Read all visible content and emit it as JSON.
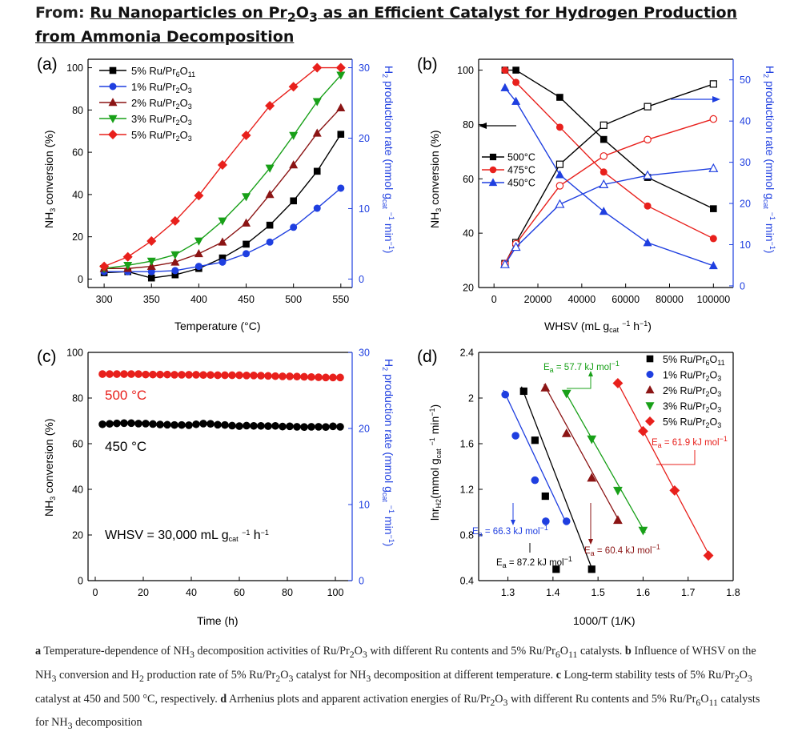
{
  "header": {
    "prefix": "From:",
    "title": "Ru Nanoparticles on Pr2O3 as an Efficient Catalyst for Hydrogen Production from Ammonia Decomposition"
  },
  "caption": {
    "a_key": "a",
    "a_text": "Temperature-dependence of NH3 decomposition activities of Ru/Pr2O3 with different Ru contents and 5% Ru/Pr6O11 catalysts.",
    "b_key": "b",
    "b_text": "Influence of WHSV on the NH3 conversion and H2 production rate of 5% Ru/Pr2O3 catalyst for NH3 decomposition at different temperature.",
    "c_key": "c",
    "c_text": "Long-term stability tests of 5% Ru/Pr2O3 catalyst at 450 and 500 °C, respectively.",
    "d_key": "d",
    "d_text": "Arrhenius plots and apparent activation energies of Ru/Pr2O3 with different Ru contents and 5% Ru/Pr6O11 catalysts for NH3 decomposition"
  },
  "colors": {
    "black": "#000000",
    "blue": "#1f3fe0",
    "red": "#e8201c",
    "darkred": "#8b1414",
    "green": "#18a018",
    "axis_right": "#1f3fe0"
  },
  "chart_data": [
    {
      "panel": "(a)",
      "type": "line",
      "xlabel": "Temperature (°C)",
      "ylabel": "NH3 conversion (%)",
      "y2label": "H2 production rate (mmol gcat-1 min-1)",
      "xlim": [
        283,
        562
      ],
      "ylim": [
        -4,
        104
      ],
      "y2lim": [
        -1.2,
        31.2
      ],
      "xticks": [
        300,
        350,
        400,
        450,
        500,
        550
      ],
      "yticks": [
        0,
        20,
        40,
        60,
        80,
        100
      ],
      "y2ticks": [
        0,
        10,
        20,
        30
      ],
      "legend": "top-left",
      "series": [
        {
          "name": "5% Ru/Pr6O11",
          "color": "#000000",
          "marker": "square",
          "x": [
            300,
            325,
            350,
            375,
            400,
            425,
            450,
            475,
            500,
            525,
            550
          ],
          "y": [
            3,
            3.5,
            0.5,
            2,
            5,
            10,
            16.5,
            25.5,
            37,
            51,
            68.5
          ]
        },
        {
          "name": "1% Ru/Pr2O3",
          "color": "#1f3fe0",
          "marker": "circle",
          "x": [
            300,
            325,
            350,
            375,
            400,
            425,
            450,
            475,
            500,
            525,
            550
          ],
          "y": [
            3.5,
            3.5,
            3.5,
            4,
            6,
            8,
            12,
            17.5,
            24.5,
            33.5,
            43
          ]
        },
        {
          "name": "2% Ru/Pr2O3",
          "color": "#8b1414",
          "marker": "triangle-up",
          "x": [
            300,
            325,
            350,
            375,
            400,
            425,
            450,
            475,
            500,
            525,
            550
          ],
          "y": [
            5,
            5,
            6,
            8,
            12,
            17.5,
            26.5,
            40,
            54,
            69,
            81
          ]
        },
        {
          "name": "3% Ru/Pr2O3",
          "color": "#18a018",
          "marker": "triangle-down",
          "x": [
            300,
            325,
            350,
            375,
            400,
            425,
            450,
            475,
            500,
            525,
            550
          ],
          "y": [
            5,
            6.5,
            8.5,
            11.5,
            18,
            27.5,
            39,
            52.5,
            68,
            84,
            96.5
          ]
        },
        {
          "name": "5% Ru/Pr2O3",
          "color": "#e8201c",
          "marker": "diamond",
          "x": [
            300,
            325,
            350,
            375,
            400,
            425,
            450,
            475,
            500,
            525,
            550
          ],
          "y": [
            6,
            10.5,
            18,
            27.5,
            39.5,
            54,
            68,
            82,
            91,
            100,
            100
          ]
        }
      ]
    },
    {
      "panel": "(b)",
      "type": "line",
      "xlabel": "WHSV (mL gcat-1 h-1)",
      "ylabel": "NH3 conversion (%)",
      "y2label": "H2 production rate (mmol gcat-1 min-1)",
      "xlim": [
        -7000,
        109000
      ],
      "ylim": [
        20,
        104
      ],
      "y2lim": [
        -0.4,
        55
      ],
      "xticks": [
        0,
        20000,
        40000,
        60000,
        80000,
        100000
      ],
      "yticks": [
        20,
        40,
        60,
        80,
        100
      ],
      "y2ticks": [
        0,
        10,
        20,
        30,
        40,
        50
      ],
      "legend": "center-left",
      "series": [
        {
          "name": "500°C",
          "color": "#000000",
          "marker": "square",
          "axis": "left",
          "x": [
            5000,
            10000,
            30000,
            50000,
            70000,
            100000
          ],
          "y": [
            100,
            100,
            90,
            74.5,
            60.5,
            49
          ]
        },
        {
          "name": "475°C",
          "color": "#e8201c",
          "marker": "circle",
          "axis": "left",
          "x": [
            5000,
            10000,
            30000,
            50000,
            70000,
            100000
          ],
          "y": [
            100,
            95.5,
            79,
            62.5,
            50,
            38
          ]
        },
        {
          "name": "450°C",
          "color": "#1f3fe0",
          "marker": "triangle-up",
          "axis": "left",
          "x": [
            5000,
            10000,
            30000,
            50000,
            70000,
            100000
          ],
          "y": [
            93.5,
            88.5,
            61.5,
            48,
            36.5,
            28
          ]
        },
        {
          "name": "",
          "color": "#000000",
          "marker": "square-open",
          "axis": "right",
          "x": [
            5000,
            10000,
            30000,
            50000,
            70000,
            100000
          ],
          "y": [
            5.4,
            10.5,
            29.5,
            39,
            43.5,
            49
          ]
        },
        {
          "name": "",
          "color": "#e8201c",
          "marker": "circle-open",
          "axis": "right",
          "x": [
            5000,
            10000,
            30000,
            50000,
            70000,
            100000
          ],
          "y": [
            5.4,
            10.2,
            24.3,
            31.5,
            35.5,
            40.5
          ]
        },
        {
          "name": "",
          "color": "#1f3fe0",
          "marker": "triangle-open",
          "axis": "right",
          "x": [
            5000,
            10000,
            30000,
            50000,
            70000,
            100000
          ],
          "y": [
            5.2,
            9.4,
            19.8,
            24.6,
            26.8,
            28.5
          ]
        }
      ]
    },
    {
      "panel": "(c)",
      "type": "scatter",
      "xlabel": "Time (h)",
      "ylabel": "NH3 conversion (%)",
      "y2label": "H2 production rate (mmol gcat-1 min-1)",
      "xlim": [
        -3,
        107
      ],
      "ylim": [
        0,
        100
      ],
      "y2lim": [
        0,
        30
      ],
      "xticks": [
        0,
        20,
        40,
        60,
        80,
        100
      ],
      "yticks": [
        0,
        20,
        40,
        60,
        80,
        100
      ],
      "y2ticks": [
        0,
        10,
        20,
        30
      ],
      "annotations": {
        "t500": "500 °C",
        "t450": "450 °C",
        "whsv": "WHSV = 30,000 mL gcat-1 h-1"
      },
      "series": [
        {
          "name": "500 °C",
          "color": "#e8201c",
          "marker": "circle",
          "x": [
            3,
            6,
            9,
            12,
            15,
            18,
            21,
            24,
            27,
            30,
            33,
            36,
            39,
            42,
            45,
            48,
            51,
            54,
            57,
            60,
            63,
            66,
            69,
            72,
            75,
            78,
            81,
            84,
            87,
            90,
            93,
            96,
            99,
            102
          ],
          "y": [
            90.5,
            90.5,
            90.5,
            90.5,
            90.5,
            90.5,
            90.3,
            90.3,
            90.3,
            90.3,
            90.2,
            90.2,
            90.2,
            90.2,
            90.1,
            90.1,
            90,
            90,
            90,
            90,
            89.9,
            89.9,
            89.8,
            89.7,
            89.6,
            89.5,
            89.5,
            89.4,
            89.3,
            89.2,
            89.1,
            89,
            89,
            89
          ]
        },
        {
          "name": "450 °C",
          "color": "#000000",
          "marker": "circle",
          "x": [
            3,
            6,
            9,
            12,
            15,
            18,
            21,
            24,
            27,
            30,
            33,
            36,
            39,
            42,
            45,
            48,
            51,
            54,
            57,
            60,
            63,
            66,
            69,
            72,
            75,
            78,
            81,
            84,
            87,
            90,
            93,
            96,
            99,
            102
          ],
          "y": [
            68.5,
            68.7,
            68.9,
            69,
            69,
            68.8,
            68.8,
            68.6,
            68.4,
            68.3,
            68.2,
            68.2,
            68.1,
            68.5,
            68.8,
            68.7,
            68.3,
            68.2,
            67.9,
            67.7,
            67.9,
            67.8,
            67.8,
            67.7,
            67.8,
            67.5,
            67.6,
            67.4,
            67.3,
            67.4,
            67.4,
            67.3,
            67.6,
            67.4
          ]
        }
      ]
    },
    {
      "panel": "(d)",
      "type": "scatter",
      "xlabel": "1000/T (1/K)",
      "ylabel": "lnrH2(mmol gcat-1 min-1)",
      "xlim": [
        1.235,
        1.8
      ],
      "ylim": [
        0.4,
        2.4
      ],
      "xticks": [
        1.3,
        1.4,
        1.5,
        1.6,
        1.7,
        1.8
      ],
      "yticks": [
        0.4,
        0.8,
        1.2,
        1.6,
        2.0,
        2.4
      ],
      "legend": "top-right",
      "annotations": {
        "e_58": "Ea = 57.7 kJ mol-1",
        "e_62": "Ea = 61.9 kJ mol-1",
        "e_66": "Ea = 66.3 kJ mol-1",
        "e_87": "Ea = 87.2 kJ mol-1",
        "e_60": "Ea = 60.4 kJ mol-1"
      },
      "series": [
        {
          "name": "5% Ru/Pr6O11",
          "color": "#000000",
          "marker": "square",
          "x": [
            1.335,
            1.36,
            1.383,
            1.407,
            1.486
          ],
          "y": [
            2.06,
            1.63,
            1.14,
            0.5,
            0.5
          ]
        },
        {
          "name": "1% Ru/Pr2O3",
          "color": "#1f3fe0",
          "marker": "circle",
          "x": [
            1.294,
            1.317,
            1.36,
            1.384,
            1.43
          ],
          "y": [
            2.03,
            1.67,
            1.28,
            0.92,
            0.92
          ]
        },
        {
          "name": "2% Ru/Pr2O3",
          "color": "#8b1414",
          "marker": "triangle-up",
          "x": [
            1.383,
            1.43,
            1.486,
            1.544
          ],
          "y": [
            2.09,
            1.69,
            1.3,
            0.93
          ]
        },
        {
          "name": "3% Ru/Pr2O3",
          "color": "#18a018",
          "marker": "triangle-down",
          "x": [
            1.43,
            1.486,
            1.544,
            1.6
          ],
          "y": [
            2.04,
            1.64,
            1.19,
            0.84
          ]
        },
        {
          "name": "5% Ru/Pr2O3",
          "color": "#e8201c",
          "marker": "diamond",
          "x": [
            1.544,
            1.6,
            1.67,
            1.745
          ],
          "y": [
            2.13,
            1.71,
            1.19,
            0.62
          ]
        }
      ]
    }
  ]
}
